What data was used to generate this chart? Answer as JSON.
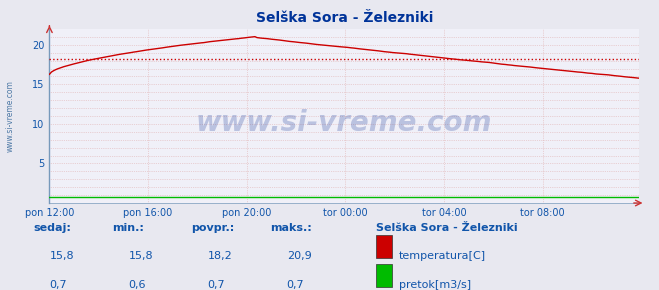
{
  "title": "Selška Sora - Železniki",
  "bg_color": "#e8e8f0",
  "plot_bg_color": "#f0f0f8",
  "grid_minor_color": "#e0b0b0",
  "grid_major_color": "#d0c0c0",
  "temp_color": "#cc0000",
  "flow_color": "#00bb00",
  "avg_line_color": "#cc0000",
  "border_color": "#7799bb",
  "xlim": [
    0,
    287
  ],
  "ylim": [
    0,
    22
  ],
  "yticks": [
    0,
    5,
    10,
    15,
    20
  ],
  "xtick_labels": [
    "pon 12:00",
    "pon 16:00",
    "pon 20:00",
    "tor 00:00",
    "tor 04:00",
    "tor 08:00"
  ],
  "xtick_positions": [
    0,
    48,
    96,
    144,
    192,
    240
  ],
  "watermark": "www.si-vreme.com",
  "watermark_color": "#1a3a99",
  "watermark_alpha": 0.25,
  "side_label": "www.si-vreme.com",
  "legend_title": "Selška Sora - Železniki",
  "legend_items": [
    {
      "label": "temperatura[C]",
      "color": "#cc0000"
    },
    {
      "label": "pretok[m3/s]",
      "color": "#00bb00"
    }
  ],
  "stats_headers": [
    "sedaj:",
    "min.:",
    "povpr.:",
    "maks.:"
  ],
  "stats_temp": [
    "15,8",
    "15,8",
    "18,2",
    "20,9"
  ],
  "stats_flow": [
    "0,7",
    "0,6",
    "0,7",
    "0,7"
  ],
  "avg_temp": 18.2,
  "min_temp": 15.8,
  "max_temp": 20.9,
  "current_temp": 15.8
}
